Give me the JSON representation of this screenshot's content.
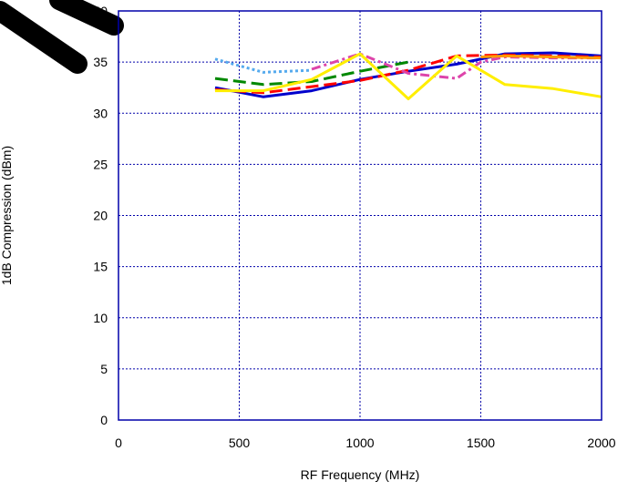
{
  "chart_data": {
    "type": "line",
    "title": "",
    "xlabel": "RF Frequency (MHz)",
    "ylabel": "1dB Compression (dBm)",
    "xlim": [
      0,
      2000
    ],
    "ylim": [
      0,
      40
    ],
    "xticks": [
      0,
      500,
      1000,
      1500,
      2000
    ],
    "yticks": [
      0,
      5,
      10,
      15,
      20,
      25,
      30,
      35,
      40
    ],
    "grid": true,
    "legend": "none",
    "series": [
      {
        "color": "#0000cc",
        "dash": "solid",
        "x": [
          400,
          600,
          800,
          1000,
          1200,
          1400,
          1600,
          1800,
          2000
        ],
        "y": [
          32.5,
          31.6,
          32.2,
          33.3,
          34.1,
          34.8,
          35.8,
          35.9,
          35.6
        ]
      },
      {
        "color": "#ff0000",
        "dash": "long-dash",
        "x": [
          400,
          600,
          800,
          1000,
          1200,
          1400,
          1600,
          1800,
          2000
        ],
        "y": [
          32.3,
          32.0,
          32.6,
          33.2,
          34.2,
          35.6,
          35.7,
          35.6,
          35.5
        ]
      },
      {
        "color": "#008800",
        "dash": "long-dash",
        "x": [
          400,
          600,
          800,
          1000,
          1200
        ],
        "y": [
          33.4,
          32.8,
          33.1,
          34.1,
          35.0
        ]
      },
      {
        "color": "#55aaee",
        "dash": "dotted",
        "x": [
          400,
          600,
          800
        ],
        "y": [
          35.3,
          34.0,
          34.2
        ]
      },
      {
        "color": "#dd44aa",
        "dash": "dash-dot",
        "x": [
          800,
          1000,
          1200,
          1400,
          1500,
          1600,
          1800,
          2000
        ],
        "y": [
          34.3,
          35.8,
          33.9,
          33.4,
          35.0,
          35.5,
          35.4,
          35.4
        ]
      },
      {
        "color": "#ff9900",
        "dash": "solid",
        "x": [
          1500,
          1600,
          1800,
          2000
        ],
        "y": [
          35.5,
          35.6,
          35.5,
          35.4
        ]
      },
      {
        "color": "#ffee00",
        "dash": "solid",
        "x": [
          400,
          600,
          800,
          1000,
          1200,
          1400,
          1600,
          1800,
          2000
        ],
        "y": [
          32.2,
          32.2,
          33.3,
          35.8,
          31.4,
          35.6,
          32.8,
          32.4,
          31.6
        ]
      }
    ]
  }
}
